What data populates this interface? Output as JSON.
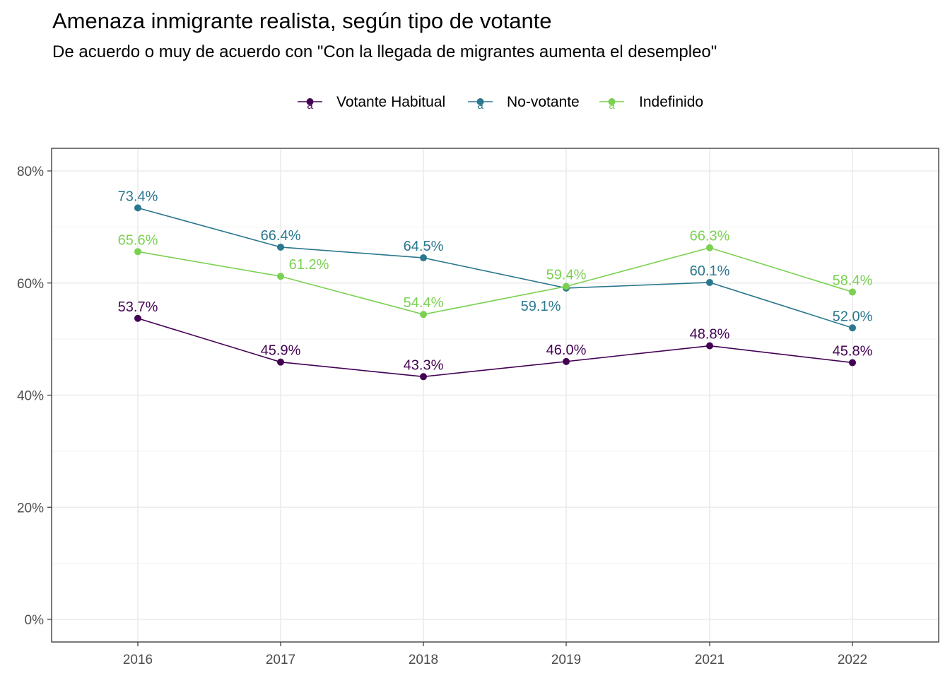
{
  "chart_data": {
    "type": "line",
    "title": "Amenaza inmigrante realista, según tipo de votante",
    "subtitle": "De acuerdo o muy de acuerdo con \"Con la llegada de migrantes aumenta el desempleo\"",
    "xlabel": "",
    "ylabel": "",
    "x": [
      "2016",
      "2017",
      "2018",
      "2019",
      "2021",
      "2022"
    ],
    "ylim": [
      0,
      0.8
    ],
    "yticks": [
      0,
      0.2,
      0.4,
      0.6,
      0.8
    ],
    "ytick_labels": [
      "0%",
      "20%",
      "40%",
      "60%",
      "80%"
    ],
    "grid": true,
    "legend_position": "top",
    "legend_glyph": "a",
    "series": [
      {
        "name": "Votante Habitual",
        "color": "#440154",
        "values": [
          0.537,
          0.459,
          0.433,
          0.46,
          0.488,
          0.458
        ],
        "labels": [
          "53.7%",
          "45.9%",
          "43.3%",
          "46.0%",
          "48.8%",
          "45.8%"
        ]
      },
      {
        "name": "No-votante",
        "color": "#2A788E",
        "values": [
          0.734,
          0.664,
          0.645,
          0.591,
          0.601,
          0.52
        ],
        "labels": [
          "73.4%",
          "66.4%",
          "64.5%",
          "59.1%",
          "60.1%",
          "52.0%"
        ]
      },
      {
        "name": "Indefinido",
        "color": "#7AD151",
        "values": [
          0.656,
          0.612,
          0.544,
          0.594,
          0.663,
          0.584
        ],
        "labels": [
          "65.6%",
          "61.2%",
          "54.4%",
          "59.4%",
          "66.3%",
          "58.4%"
        ]
      }
    ]
  }
}
